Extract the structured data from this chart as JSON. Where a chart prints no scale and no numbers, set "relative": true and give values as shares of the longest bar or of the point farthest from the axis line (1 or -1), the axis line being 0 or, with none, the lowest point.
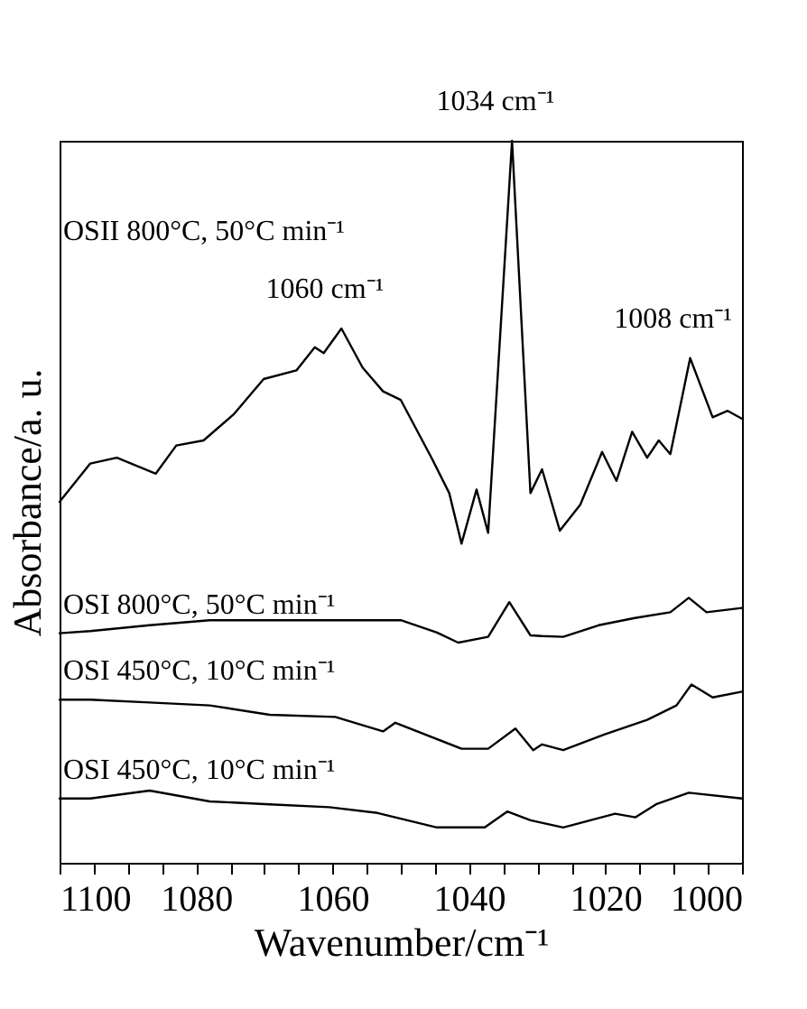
{
  "chart_data": {
    "type": "line",
    "relative": true,
    "xlabel": "Wavenumber/cm⁻¹",
    "ylabel": "Absorbance/a. u.",
    "xlim": [
      1100,
      1000
    ],
    "xticks": [
      1100,
      {
        "value": 1095,
        "label": null
      },
      {
        "value": 1090,
        "label": null
      },
      {
        "value": 1085,
        "label": null
      },
      1080,
      {
        "value": 1075,
        "label": null
      },
      {
        "value": 1070,
        "label": null
      },
      {
        "value": 1065,
        "label": null
      },
      1060,
      {
        "value": 1055,
        "label": null
      },
      {
        "value": 1050,
        "label": null
      },
      {
        "value": 1045,
        "label": null
      },
      1040,
      {
        "value": 1035,
        "label": null
      },
      {
        "value": 1030,
        "label": null
      },
      {
        "value": 1025,
        "label": null
      },
      1020,
      {
        "value": 1015,
        "label": null
      },
      {
        "value": 1010,
        "label": null
      },
      {
        "value": 1005,
        "label": null
      },
      1000
    ],
    "series": [
      {
        "name": "OSII 800°C, 50°C min⁻¹",
        "color": "#000000",
        "x": [
          1100,
          1095.5,
          1091.6,
          1085.9,
          1082.9,
          1078.9,
          1074.5,
          1070.1,
          1065.3,
          1062.6,
          1061.3,
          1058.7,
          1055.6,
          1052.6,
          1050,
          1045.5,
          1042.9,
          1041.1,
          1038.9,
          1037.2,
          1033.7,
          1031,
          1029.3,
          1026.7,
          1023.7,
          1020.5,
          1018.4,
          1016.1,
          1013.9,
          1012.2,
          1010.5,
          1007.6,
          1004.3,
          1002.1,
          1000
        ],
        "values": [
          0.5,
          0.553,
          0.561,
          0.539,
          0.578,
          0.585,
          0.621,
          0.67,
          0.682,
          0.714,
          0.706,
          0.74,
          0.686,
          0.653,
          0.641,
          0.561,
          0.512,
          0.442,
          0.517,
          0.457,
          1,
          0.512,
          0.545,
          0.46,
          0.496,
          0.569,
          0.529,
          0.597,
          0.561,
          0.585,
          0.566,
          0.699,
          0.617,
          0.626,
          0.615
        ]
      },
      {
        "name": "OSI 800°C, 50°C min⁻¹",
        "color": "#000000",
        "x": [
          1100,
          1095.5,
          1086.8,
          1078,
          1062.2,
          1050,
          1044.7,
          1041.6,
          1037.2,
          1034.1,
          1031,
          1029.3,
          1026.2,
          1021,
          1015.7,
          1010.5,
          1007.8,
          1005.2,
          1000
        ],
        "values": [
          0.318,
          0.321,
          0.329,
          0.336,
          0.336,
          0.336,
          0.319,
          0.305,
          0.313,
          0.361,
          0.315,
          0.314,
          0.313,
          0.329,
          0.339,
          0.347,
          0.367,
          0.347,
          0.353
        ]
      },
      {
        "name": "OSI 450°C, 10°C min⁻¹",
        "color": "#000000",
        "x": [
          1100,
          1095.5,
          1086.8,
          1078,
          1069.2,
          1059.6,
          1052.6,
          1050.8,
          1041.1,
          1037.2,
          1033.2,
          1030.6,
          1029.3,
          1026.2,
          1020.1,
          1013.9,
          1009.6,
          1007.4,
          1004.3,
          1000
        ],
        "values": [
          0.226,
          0.226,
          0.222,
          0.218,
          0.205,
          0.202,
          0.182,
          0.194,
          0.158,
          0.158,
          0.186,
          0.156,
          0.164,
          0.156,
          0.178,
          0.198,
          0.218,
          0.247,
          0.229,
          0.237
        ]
      },
      {
        "name": "OSI 450°C, 10°C min⁻¹",
        "color": "#000000",
        "x": [
          1100,
          1095.5,
          1086.8,
          1078,
          1069.2,
          1060.5,
          1053.4,
          1044.7,
          1037.7,
          1034.4,
          1031,
          1026.2,
          1018.6,
          1015.6,
          1012.6,
          1007.8,
          1000
        ],
        "values": [
          0.089,
          0.089,
          0.1,
          0.085,
          0.081,
          0.077,
          0.069,
          0.049,
          0.049,
          0.071,
          0.059,
          0.049,
          0.068,
          0.063,
          0.081,
          0.097,
          0.089
        ]
      }
    ],
    "annotations": [
      {
        "text": "1060 cm⁻¹",
        "x": 1059,
        "y": 0.74
      },
      {
        "text": "1034 cm⁻¹",
        "x": 1034,
        "y": 1
      },
      {
        "text": "1008 cm⁻¹",
        "x": 1008,
        "y": 0.699
      }
    ]
  }
}
